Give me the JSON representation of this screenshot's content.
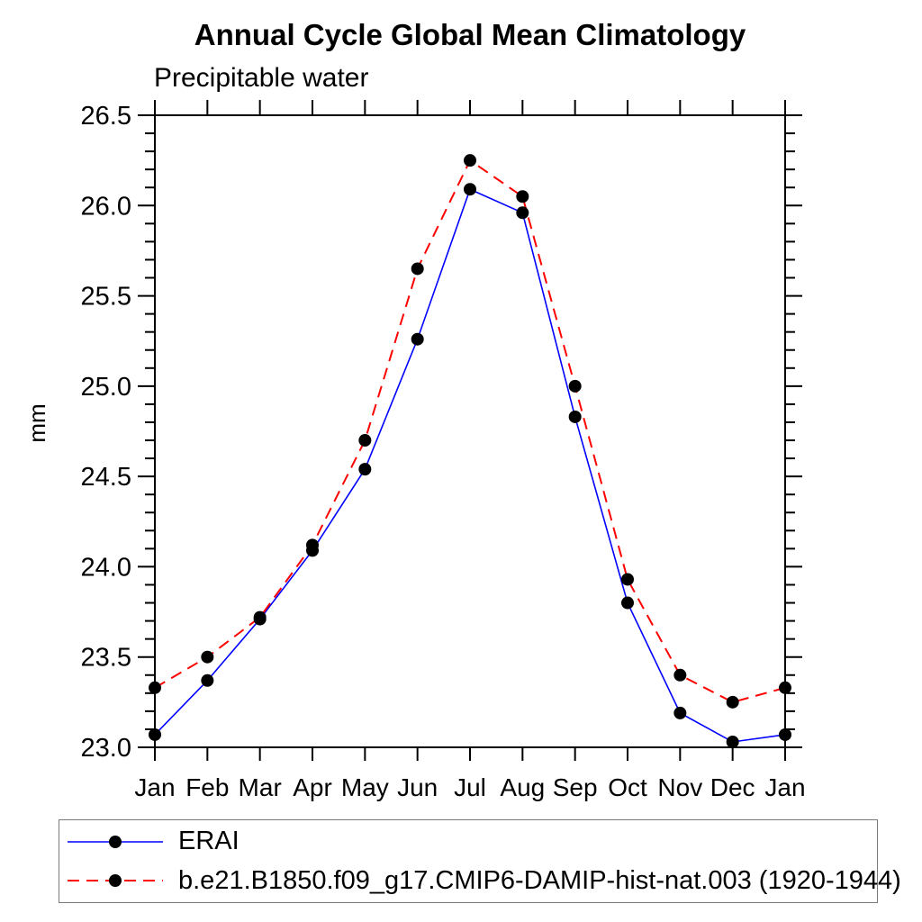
{
  "figure": {
    "background": "#ffffff",
    "axis_color": "#000000",
    "legend_border_color": "#7a7a7a"
  },
  "chart_data": {
    "type": "line",
    "title": "Annual Cycle Global Mean Climatology",
    "subtitle": "Precipitable water",
    "ylabel": "mm",
    "xlabel": "",
    "x_tick_labels": [
      "Jan",
      "Feb",
      "Mar",
      "Apr",
      "May",
      "Jun",
      "Jul",
      "Aug",
      "Sep",
      "Oct",
      "Nov",
      "Dec",
      "Jan"
    ],
    "ylim": [
      23.0,
      26.5
    ],
    "y_major_tick_step": 0.5,
    "y_minor_tick_step": 0.1,
    "y_tick_labels": [
      "23.0",
      "23.5",
      "24.0",
      "24.5",
      "25.0",
      "25.5",
      "26.0",
      "26.5"
    ],
    "grid": false,
    "legend_position": "bottom-left",
    "series": [
      {
        "name": "ERAI",
        "color": "#0000ff",
        "line_style": "solid",
        "marker": "circle",
        "marker_color": "#000000",
        "values": [
          23.07,
          23.37,
          23.71,
          24.09,
          24.54,
          25.26,
          26.09,
          25.96,
          24.83,
          23.8,
          23.19,
          23.03,
          23.07
        ]
      },
      {
        "name": "b.e21.B1850.f09_g17.CMIP6-DAMIP-hist-nat.003 (1920-1944)",
        "color": "#ff0000",
        "line_style": "dashed",
        "marker": "circle",
        "marker_color": "#000000",
        "values": [
          23.33,
          23.5,
          23.72,
          24.12,
          24.7,
          25.65,
          26.25,
          26.05,
          25.0,
          23.93,
          23.4,
          23.25,
          23.33
        ]
      }
    ]
  }
}
